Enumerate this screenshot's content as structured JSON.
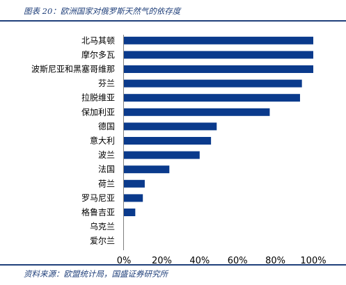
{
  "header": {
    "title": "图表 20：欧洲国家对俄罗斯天然气的依存度"
  },
  "footer": {
    "source": "资料来源：欧盟统计局，国盛证券研究所"
  },
  "colors": {
    "bar": "#0a3a8c",
    "rule": "#1f3f7a",
    "axis": "#7f7f7f"
  },
  "chart_data": {
    "type": "bar",
    "orientation": "horizontal",
    "categories": [
      "北马其顿",
      "摩尔多瓦",
      "波斯尼亚和黑塞哥维那",
      "芬兰",
      "拉脱维亚",
      "保加利亚",
      "德国",
      "意大利",
      "波兰",
      "法国",
      "荷兰",
      "罗马尼亚",
      "格鲁吉亚",
      "乌克兰",
      "爱尔兰"
    ],
    "values": [
      100,
      100,
      100,
      94,
      93,
      77,
      49,
      46,
      40,
      24,
      11,
      10,
      6,
      0,
      0
    ],
    "xlim": [
      0,
      100
    ],
    "xticks": [
      "0%",
      "20%",
      "40%",
      "60%",
      "80%",
      "100%"
    ],
    "xlabel": "",
    "ylabel": "",
    "grid": false
  }
}
